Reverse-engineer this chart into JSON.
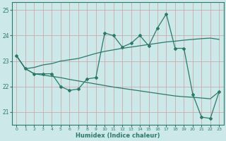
{
  "xlabel": "Humidex (Indice chaleur)",
  "x": [
    0,
    1,
    2,
    3,
    4,
    5,
    6,
    7,
    8,
    9,
    10,
    11,
    12,
    13,
    14,
    15,
    16,
    17,
    18,
    19,
    20,
    21,
    22,
    23
  ],
  "y_main": [
    23.2,
    22.7,
    22.5,
    22.5,
    22.5,
    22.0,
    21.85,
    21.9,
    22.3,
    22.35,
    24.1,
    24.0,
    23.55,
    23.7,
    24.0,
    23.6,
    24.3,
    24.85,
    23.5,
    23.5,
    21.7,
    20.8,
    20.75,
    21.8
  ],
  "y_upper": [
    23.2,
    22.7,
    22.75,
    22.85,
    22.9,
    23.0,
    23.05,
    23.1,
    23.2,
    23.3,
    23.38,
    23.44,
    23.5,
    23.55,
    23.6,
    23.65,
    23.7,
    23.75,
    23.78,
    23.82,
    23.85,
    23.88,
    23.9,
    23.85
  ],
  "y_lower": [
    23.2,
    22.7,
    22.5,
    22.45,
    22.4,
    22.35,
    22.28,
    22.22,
    22.16,
    22.1,
    22.04,
    21.98,
    21.93,
    21.88,
    21.83,
    21.78,
    21.73,
    21.68,
    21.63,
    21.6,
    21.58,
    21.55,
    21.52,
    21.8
  ],
  "line_color": "#2a7a6a",
  "bg_color": "#cce8e8",
  "grid_color_major": "#b8d4d4",
  "grid_color_minor": "#d4e8e8",
  "ylim": [
    20.5,
    25.3
  ],
  "xlim": [
    -0.5,
    23.5
  ],
  "yticks": [
    21,
    22,
    23,
    24,
    25
  ],
  "xticks": [
    0,
    1,
    2,
    3,
    4,
    5,
    6,
    7,
    8,
    9,
    10,
    11,
    12,
    13,
    14,
    15,
    16,
    17,
    18,
    19,
    20,
    21,
    22,
    23
  ]
}
